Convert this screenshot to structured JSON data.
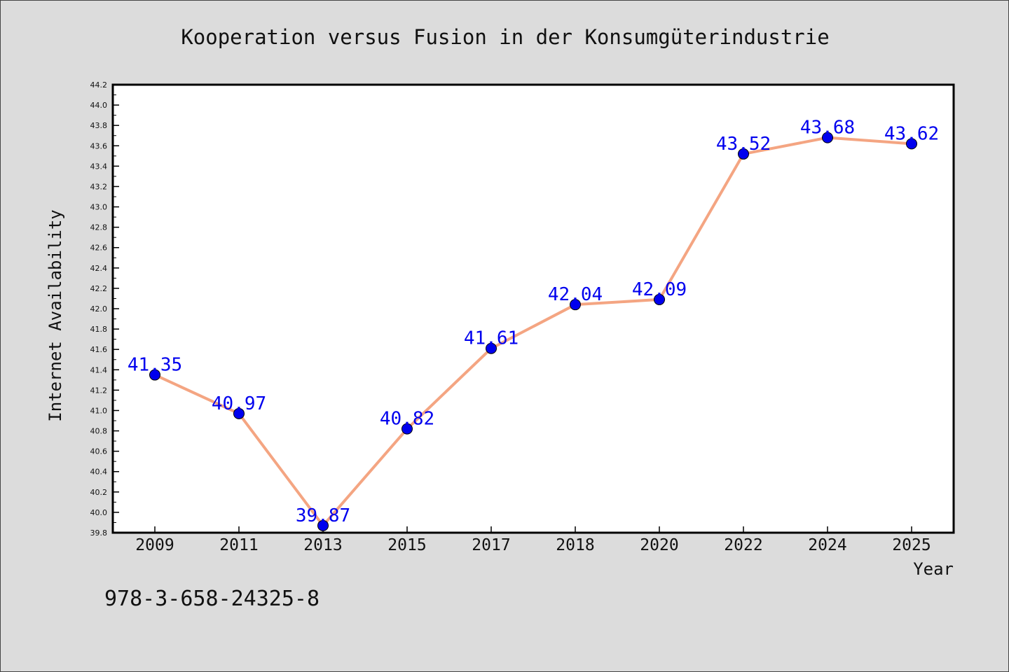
{
  "chart_data": {
    "type": "line",
    "title": "Kooperation versus Fusion in der Konsumgüterindustrie",
    "xlabel": "Year",
    "ylabel": "Internet Availability",
    "categories": [
      "2009",
      "2011",
      "2013",
      "2015",
      "2017",
      "2018",
      "2020",
      "2022",
      "2024",
      "2025"
    ],
    "values": [
      41.35,
      40.97,
      39.87,
      40.82,
      41.61,
      42.04,
      42.09,
      43.52,
      43.68,
      43.62
    ],
    "data_labels": [
      "41.35",
      "40.97",
      "39.87",
      "40.82",
      "41.61",
      "42.04",
      "42.09",
      "43.52",
      "43.68",
      "43.62"
    ],
    "ylim": [
      39.8,
      44.2
    ],
    "yticks": [
      "39.8",
      "40.0",
      "40.2",
      "40.4",
      "40.6",
      "40.8",
      "41.0",
      "41.2",
      "41.4",
      "41.6",
      "41.8",
      "42.0",
      "42.2",
      "42.4",
      "42.6",
      "42.8",
      "43.0",
      "43.2",
      "43.4",
      "43.6",
      "43.8",
      "44.0",
      "44.2"
    ],
    "grid": false,
    "colors": {
      "line": "#f4a582",
      "marker": "#0000ee",
      "label": "#0000ee",
      "background": "#dcdcdc",
      "plot_background": "#ffffff"
    }
  },
  "footer_text": "978-3-658-24325-8"
}
